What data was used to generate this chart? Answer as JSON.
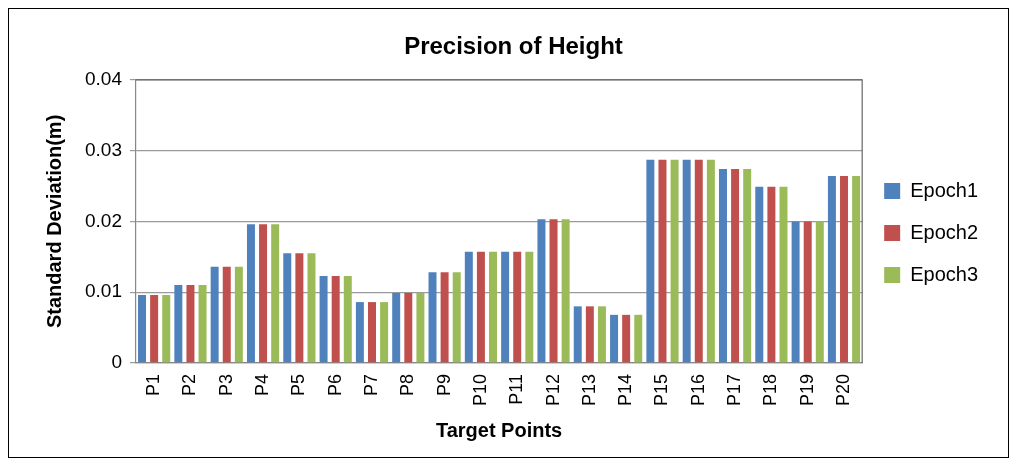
{
  "chart_data": {
    "type": "bar",
    "title": "Precision of Height",
    "xlabel": "Target Points",
    "ylabel": "Standard Deviation(m)",
    "categories": [
      "P1",
      "P2",
      "P3",
      "P4",
      "P5",
      "P6",
      "P7",
      "P8",
      "P9",
      "P10",
      "P11",
      "P12",
      "P13",
      "P14",
      "P15",
      "P16",
      "P17",
      "P18",
      "P19",
      "P20"
    ],
    "series": [
      {
        "name": "Epoch1",
        "color": "#4f81bd",
        "values": [
          0.0096,
          0.011,
          0.0136,
          0.0196,
          0.0155,
          0.0123,
          0.0086,
          0.0099,
          0.0128,
          0.0157,
          0.0157,
          0.0203,
          0.008,
          0.0068,
          0.0287,
          0.0287,
          0.0274,
          0.0249,
          0.02,
          0.0264
        ]
      },
      {
        "name": "Epoch2",
        "color": "#c0504d",
        "values": [
          0.0096,
          0.011,
          0.0136,
          0.0196,
          0.0155,
          0.0123,
          0.0086,
          0.0099,
          0.0128,
          0.0157,
          0.0157,
          0.0203,
          0.008,
          0.0068,
          0.0287,
          0.0287,
          0.0274,
          0.0249,
          0.02,
          0.0264
        ]
      },
      {
        "name": "Epoch3",
        "color": "#9bbb59",
        "values": [
          0.0096,
          0.011,
          0.0136,
          0.0196,
          0.0155,
          0.0123,
          0.0086,
          0.0099,
          0.0128,
          0.0157,
          0.0157,
          0.0203,
          0.008,
          0.0068,
          0.0287,
          0.0287,
          0.0274,
          0.0249,
          0.02,
          0.0264
        ]
      }
    ],
    "ylim": [
      0,
      0.04
    ],
    "yticks": [
      0,
      0.01,
      0.02,
      0.03,
      0.04
    ],
    "grid": "y",
    "legend": "right"
  }
}
